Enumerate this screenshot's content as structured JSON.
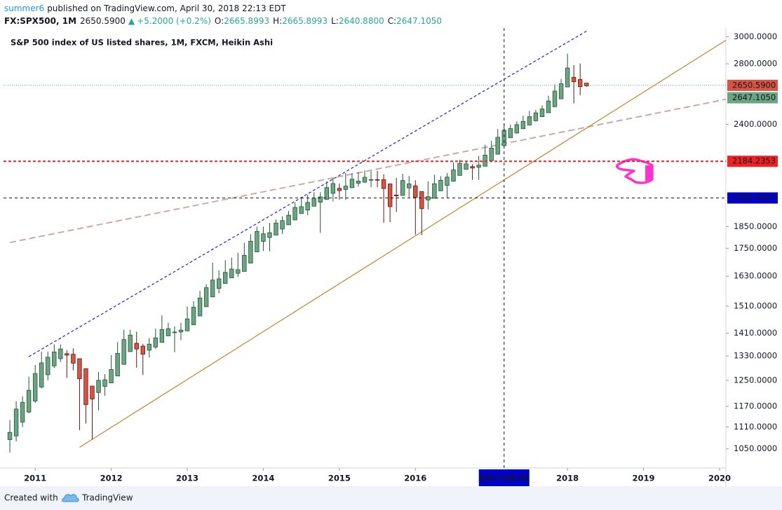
{
  "header": {
    "author": "summer6",
    "published": "published on TradingView.com, April 30, 2018 22:13 EDT",
    "symbol": "FX:SPX500, 1M",
    "last": "2650.5900",
    "arrow": "▲",
    "change": "+5.2000 (+0.2%)",
    "ohlc": [
      {
        "key": "O:",
        "text": "2665.8993"
      },
      {
        "key": "H:",
        "text": "2665.8993"
      },
      {
        "key": "L:",
        "text": "2640.8800"
      },
      {
        "key": "C:",
        "text": "2647.1050"
      }
    ]
  },
  "footer": {
    "created": "Created with",
    "brand": "TradingView"
  },
  "chart_data": {
    "type": "candlestick",
    "title": "S&P 500 index of US listed shares, 1M, FXCM, Heikin Ashi",
    "log_scale": true,
    "grid": false,
    "x": [
      "2010-09",
      "2010-10",
      "2010-11",
      "2010-12",
      "2011-01",
      "2011-02",
      "2011-03",
      "2011-04",
      "2011-05",
      "2011-06",
      "2011-07",
      "2011-08",
      "2011-09",
      "2011-10",
      "2011-11",
      "2011-12",
      "2012-01",
      "2012-02",
      "2012-03",
      "2012-04",
      "2012-05",
      "2012-06",
      "2012-07",
      "2012-08",
      "2012-09",
      "2012-10",
      "2012-11",
      "2012-12",
      "2013-01",
      "2013-02",
      "2013-03",
      "2013-04",
      "2013-05",
      "2013-06",
      "2013-07",
      "2013-08",
      "2013-09",
      "2013-10",
      "2013-11",
      "2013-12",
      "2014-01",
      "2014-02",
      "2014-03",
      "2014-04",
      "2014-05",
      "2014-06",
      "2014-07",
      "2014-08",
      "2014-09",
      "2014-10",
      "2014-11",
      "2014-12",
      "2015-01",
      "2015-02",
      "2015-03",
      "2015-04",
      "2015-05",
      "2015-06",
      "2015-07",
      "2015-08",
      "2015-09",
      "2015-10",
      "2015-11",
      "2015-12",
      "2016-01",
      "2016-02",
      "2016-03",
      "2016-04",
      "2016-05",
      "2016-06",
      "2016-07",
      "2016-08",
      "2016-09",
      "2016-10",
      "2016-11",
      "2016-12",
      "2017-01",
      "2017-02",
      "2017-03",
      "2017-04",
      "2017-05",
      "2017-06",
      "2017-07",
      "2017-08",
      "2017-09",
      "2017-10",
      "2017-11",
      "2017-12",
      "2018-01",
      "2018-02",
      "2018-03",
      "2018-04"
    ],
    "series": [
      {
        "up_color": "#6ba583",
        "down_color": "#d75442",
        "up_border": "#225437",
        "down_border": "#5b1a13",
        "open": [
          1075,
          1085,
          1124,
          1153,
          1186,
          1229,
          1268,
          1297,
          1321,
          1338,
          1336,
          1321,
          1288,
          1232,
          1212,
          1231,
          1242,
          1264,
          1302,
          1345,
          1374,
          1364,
          1350,
          1361,
          1377,
          1400,
          1413,
          1414,
          1418,
          1440,
          1473,
          1508,
          1546,
          1580,
          1600,
          1623,
          1642,
          1650,
          1685,
          1734,
          1781,
          1799,
          1810,
          1838,
          1858,
          1881,
          1912,
          1929,
          1948,
          1968,
          1982,
          2013,
          2039,
          2033,
          2042,
          2065,
          2071,
          2084,
          2085,
          2085,
          2062,
          2004,
          2002,
          2041,
          2052,
          2022,
          1979,
          1988,
          2026,
          2054,
          2076,
          2107,
          2140,
          2155,
          2151,
          2157,
          2188,
          2224,
          2273,
          2319,
          2347,
          2373,
          2396,
          2422,
          2447,
          2472,
          2510,
          2561,
          2640,
          2705,
          2690,
          2665.8993
        ],
        "high": [
          1130,
          1185,
          1200,
          1262,
          1300,
          1345,
          1345,
          1370,
          1370,
          1350,
          1356,
          1321,
          1288,
          1232,
          1277,
          1270,
          1333,
          1378,
          1422,
          1422,
          1415,
          1372,
          1392,
          1426,
          1475,
          1448,
          1434,
          1448,
          1509,
          1530,
          1570,
          1597,
          1687,
          1654,
          1698,
          1709,
          1730,
          1775,
          1814,
          1849,
          1850,
          1867,
          1883,
          1898,
          1925,
          1968,
          1991,
          2005,
          2019,
          2019,
          2075,
          2093,
          2064,
          2120,
          2119,
          2125,
          2134,
          2130,
          2132,
          2113,
          2062,
          2094,
          2116,
          2104,
          2081,
          2022,
          2075,
          2111,
          2103,
          2120,
          2178,
          2193,
          2187,
          2169,
          2214,
          2278,
          2301,
          2371,
          2400,
          2398,
          2418,
          2453,
          2484,
          2490,
          2519,
          2582,
          2657,
          2694,
          2873,
          2790,
          2802,
          2665.8993
        ],
        "low": [
          1040,
          1070,
          1110,
          1150,
          1180,
          1225,
          1250,
          1290,
          1310,
          1258,
          1282,
          1101,
          1120,
          1075,
          1158,
          1202,
          1242,
          1264,
          1302,
          1345,
          1291,
          1267,
          1325,
          1354,
          1377,
          1400,
          1343,
          1385,
          1418,
          1440,
          1473,
          1508,
          1546,
          1560,
          1600,
          1623,
          1627,
          1650,
          1685,
          1734,
          1738,
          1737,
          1810,
          1815,
          1858,
          1881,
          1912,
          1904,
          1948,
          1820,
          1982,
          1972,
          1981,
          1980,
          2042,
          2048,
          2067,
          2044,
          2044,
          1867,
          1871,
          1920,
          2002,
          1993,
          1812,
          1810,
          1932,
          1988,
          2026,
          1991,
          2074,
          2107,
          2140,
          2083,
          2083,
          2157,
          2188,
          2224,
          2273,
          2319,
          2347,
          2373,
          2396,
          2417,
          2447,
          2472,
          2510,
          2561,
          2640,
          2532,
          2585,
          2640.88
        ],
        "close": [
          1095,
          1162,
          1182,
          1219,
          1272,
          1307,
          1326,
          1344,
          1354,
          1333,
          1306,
          1255,
          1175,
          1192,
          1250,
          1252,
          1285,
          1339,
          1387,
          1403,
          1354,
          1336,
          1371,
          1393,
          1423,
          1426,
          1414,
          1421,
          1462,
          1506,
          1542,
          1583,
          1614,
          1619,
          1646,
          1660,
          1657,
          1719,
          1782,
          1827,
          1816,
          1821,
          1866,
          1878,
          1904,
          1942,
          1946,
          1967,
          1988,
          1995,
          2043,
          2064,
          2027,
          2050,
          2087,
          2077,
          2097,
          2085,
          2084,
          2038,
          1946,
          2000,
          2080,
          2062,
          1992,
          1936,
          1996,
          2063,
          2081,
          2098,
          2137,
          2173,
          2170,
          2147,
          2163,
          2219,
          2259,
          2322,
          2364,
          2374,
          2398,
          2418,
          2447,
          2471,
          2496,
          2547,
          2612,
          2661,
          2770,
          2675,
          2641.8,
          2647.105
        ]
      }
    ],
    "xlim": [
      "2010-08",
      "2020-02"
    ],
    "xticks": [
      "2011",
      "2012",
      "2013",
      "2014",
      "2015",
      "2016",
      "2018",
      "2019",
      "2020"
    ],
    "ylim": [
      1000,
      3040
    ],
    "yticks": [
      {
        "value": 1050,
        "label": "1050.0000"
      },
      {
        "value": 1110,
        "label": "1110.0000"
      },
      {
        "value": 1170,
        "label": "1170.0000"
      },
      {
        "value": 1250,
        "label": "1250.0000"
      },
      {
        "value": 1330,
        "label": "1330.0000"
      },
      {
        "value": 1410,
        "label": "1410.0000"
      },
      {
        "value": 1510,
        "label": "1510.0000"
      },
      {
        "value": 1630,
        "label": "1630.0000"
      },
      {
        "value": 1750,
        "label": "1750.0000"
      },
      {
        "value": 1850,
        "label": "1850.0000"
      },
      {
        "value": 2400,
        "label": "2400.0000"
      },
      {
        "value": 2800,
        "label": "2800.0000"
      },
      {
        "value": 3000,
        "label": "3000.0000"
      }
    ],
    "drawings": [
      {
        "color": "#2222cc",
        "style": "dashed",
        "points": [
          [
            "2010-12",
            1328
          ],
          [
            "2018-04",
            3043
          ]
        ]
      },
      {
        "color": "#c8aaaa",
        "style": "longdash",
        "points": [
          [
            "2010-09",
            1776
          ],
          [
            "2020-02",
            2558
          ]
        ]
      },
      {
        "color": "#c8822a",
        "style": "solid",
        "points": [
          [
            "2011-08",
            1054
          ],
          [
            "2020-02",
            2973
          ]
        ]
      }
    ],
    "levels": [
      {
        "value": 2650.59,
        "label": "2650.5900",
        "color": "#d75442",
        "line_color": "#5a9a9a",
        "style": "dotted"
      },
      {
        "value": 2647.105,
        "label": "2647.1050",
        "color": "#6ba583",
        "style": "none"
      },
      {
        "value": 2184.2353,
        "color": "#ee2222",
        "line_color": "#ee2222",
        "style": "dashed"
      }
    ],
    "crosshair": {
      "x": "2017-03-01",
      "y": 1989.4467,
      "color": "#0000cc"
    }
  }
}
